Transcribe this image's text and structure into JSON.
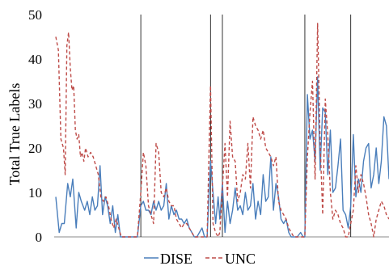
{
  "chart_data": {
    "type": "line",
    "title": "",
    "xlabel": "",
    "ylabel": "Total True Labels",
    "ylim": [
      0,
      50
    ],
    "y_ticks": [
      "0",
      "10",
      "20",
      "30",
      "40",
      "50"
    ],
    "grid": false,
    "legend_position": "bottom-center",
    "x": [
      0,
      1,
      2,
      3,
      4,
      5,
      6,
      7,
      8,
      9,
      10,
      11,
      12,
      13,
      14,
      15,
      16,
      17,
      18,
      19,
      20,
      21,
      22,
      23,
      24,
      25,
      26,
      27,
      28,
      29,
      30,
      31,
      32,
      33,
      34,
      35,
      36,
      37,
      38,
      39,
      40,
      41,
      42,
      43,
      44,
      45,
      46,
      47,
      48,
      49,
      50,
      51,
      52,
      53,
      54,
      55,
      56,
      57,
      58,
      59,
      60,
      61,
      62,
      63,
      64,
      65,
      66,
      67,
      68,
      69,
      70,
      71,
      72,
      73,
      74,
      75,
      76,
      77,
      78,
      79,
      80,
      81,
      82,
      83,
      84,
      85,
      86,
      87,
      88,
      89,
      90,
      91,
      92,
      93,
      94,
      95,
      96,
      97,
      98,
      99,
      100,
      101,
      102,
      103,
      104,
      105,
      106,
      107,
      108,
      109,
      110,
      111,
      112,
      113,
      114,
      115,
      116,
      117,
      118,
      119,
      120,
      121,
      122,
      123,
      124,
      125,
      126,
      127,
      128,
      129,
      130,
      131,
      132,
      133,
      134,
      135,
      136,
      137,
      138,
      139,
      140,
      141,
      142,
      143,
      144,
      145,
      146,
      147,
      148,
      149,
      150,
      151,
      152,
      153,
      154,
      155,
      156,
      157,
      158,
      159,
      160,
      161,
      162,
      163,
      164,
      165,
      166,
      167,
      168,
      169,
      170,
      171,
      172,
      173,
      174,
      175,
      176,
      177,
      178,
      179,
      180,
      181,
      182,
      183,
      184,
      185,
      186,
      187,
      188,
      189,
      190,
      191,
      192,
      193,
      194,
      195,
      196,
      197,
      198,
      199,
      200,
      201,
      202,
      203,
      204,
      205,
      206,
      207,
      208,
      209,
      210,
      211,
      212,
      213,
      214,
      215,
      216,
      217,
      218,
      219,
      220,
      221,
      222,
      223,
      224,
      225,
      226,
      227,
      228,
      229,
      230,
      231,
      232,
      233,
      234,
      235,
      236,
      237,
      238,
      239,
      240,
      241,
      242,
      243,
      244,
      245,
      246,
      247,
      248,
      249,
      250,
      251,
      252,
      253,
      254,
      255,
      256,
      257,
      258,
      259,
      260,
      261,
      262,
      263,
      264,
      265,
      266,
      267,
      268,
      269,
      270,
      271,
      272,
      273,
      274,
      275,
      276,
      277,
      278,
      279,
      280,
      281,
      282,
      283,
      284,
      285,
      286,
      287,
      288,
      289,
      290,
      291,
      292,
      293,
      294,
      295,
      296,
      297,
      298,
      299,
      300,
      301,
      302,
      303,
      304,
      305,
      306,
      307,
      308,
      309,
      310,
      311,
      312,
      313,
      314,
      315,
      316,
      317,
      318,
      319,
      320,
      321,
      322,
      323,
      324,
      325,
      326,
      327,
      328,
      329,
      330,
      331,
      332,
      333,
      334,
      335,
      336,
      337,
      338,
      339,
      340,
      341,
      342,
      343,
      344,
      345,
      346,
      347,
      348,
      349,
      350,
      351,
      352,
      353,
      354,
      355,
      356,
      357,
      358,
      359,
      360,
      361,
      362,
      363,
      364,
      365,
      366,
      367,
      368,
      369,
      370,
      371,
      372,
      373,
      374,
      375,
      376,
      377,
      378,
      379,
      380,
      381,
      382,
      383,
      384,
      385,
      386,
      387,
      388,
      389,
      390,
      391,
      392,
      393,
      394,
      395,
      396,
      397,
      398,
      399,
      400,
      401,
      402,
      403,
      404,
      405,
      406,
      407,
      408,
      409,
      410,
      411,
      412,
      413,
      414,
      415,
      416,
      417,
      418,
      419,
      420
    ],
    "vlines_x": [
      100,
      182,
      196,
      293,
      347
    ],
    "series": [
      {
        "name": "DISE",
        "color": "#4a7ebb",
        "dash": "solid",
        "points": [
          [
            0,
            9
          ],
          [
            4,
            1
          ],
          [
            7,
            3
          ],
          [
            10,
            3
          ],
          [
            14,
            12
          ],
          [
            17,
            9
          ],
          [
            20,
            13
          ],
          [
            24,
            2
          ],
          [
            27,
            10
          ],
          [
            30,
            8
          ],
          [
            34,
            6
          ],
          [
            37,
            8
          ],
          [
            40,
            5
          ],
          [
            43,
            9
          ],
          [
            46,
            6
          ],
          [
            49,
            7
          ],
          [
            52,
            16
          ],
          [
            55,
            5
          ],
          [
            58,
            9
          ],
          [
            61,
            7
          ],
          [
            64,
            3
          ],
          [
            67,
            7
          ],
          [
            70,
            1
          ],
          [
            73,
            5
          ],
          [
            76,
            0
          ],
          [
            80,
            0
          ],
          [
            84,
            0
          ],
          [
            88,
            0
          ],
          [
            92,
            0
          ],
          [
            96,
            0
          ],
          [
            100,
            7
          ],
          [
            103,
            8
          ],
          [
            106,
            6
          ],
          [
            109,
            6
          ],
          [
            112,
            5
          ],
          [
            115,
            8
          ],
          [
            118,
            6
          ],
          [
            121,
            8
          ],
          [
            124,
            6
          ],
          [
            127,
            7
          ],
          [
            130,
            12
          ],
          [
            133,
            4
          ],
          [
            136,
            7
          ],
          [
            139,
            5
          ],
          [
            142,
            6
          ],
          [
            145,
            4
          ],
          [
            148,
            4
          ],
          [
            151,
            3
          ],
          [
            154,
            4
          ],
          [
            157,
            2
          ],
          [
            160,
            1
          ],
          [
            163,
            0
          ],
          [
            166,
            0
          ],
          [
            169,
            1
          ],
          [
            172,
            2
          ],
          [
            175,
            0
          ],
          [
            178,
            0
          ],
          [
            182,
            17
          ],
          [
            185,
            10
          ],
          [
            188,
            3
          ],
          [
            191,
            9
          ],
          [
            193,
            4
          ],
          [
            196,
            12
          ],
          [
            199,
            1
          ],
          [
            202,
            8
          ],
          [
            205,
            3
          ],
          [
            208,
            6
          ],
          [
            211,
            11
          ],
          [
            214,
            6
          ],
          [
            217,
            7
          ],
          [
            220,
            5
          ],
          [
            223,
            10
          ],
          [
            226,
            6
          ],
          [
            229,
            7
          ],
          [
            232,
            12
          ],
          [
            235,
            4
          ],
          [
            238,
            8
          ],
          [
            241,
            5
          ],
          [
            244,
            14
          ],
          [
            247,
            8
          ],
          [
            250,
            9
          ],
          [
            253,
            18
          ],
          [
            256,
            6
          ],
          [
            259,
            12
          ],
          [
            262,
            9
          ],
          [
            265,
            4
          ],
          [
            268,
            3
          ],
          [
            271,
            4
          ],
          [
            274,
            1
          ],
          [
            277,
            0
          ],
          [
            280,
            0
          ],
          [
            284,
            0
          ],
          [
            288,
            1
          ],
          [
            291,
            0
          ],
          [
            293,
            0
          ],
          [
            296,
            32
          ],
          [
            299,
            22
          ],
          [
            302,
            24
          ],
          [
            305,
            17
          ],
          [
            308,
            36
          ],
          [
            311,
            15
          ],
          [
            314,
            29
          ],
          [
            317,
            28
          ],
          [
            320,
            14
          ],
          [
            323,
            24
          ],
          [
            326,
            10
          ],
          [
            329,
            11
          ],
          [
            332,
            16
          ],
          [
            335,
            22
          ],
          [
            338,
            6
          ],
          [
            341,
            5
          ],
          [
            344,
            2
          ],
          [
            347,
            7
          ],
          [
            350,
            23
          ],
          [
            353,
            9
          ],
          [
            356,
            13
          ],
          [
            359,
            10
          ],
          [
            362,
            17
          ],
          [
            365,
            20
          ],
          [
            368,
            21
          ],
          [
            371,
            11
          ],
          [
            374,
            14
          ],
          [
            377,
            20
          ],
          [
            380,
            12
          ],
          [
            383,
            17
          ],
          [
            386,
            27
          ],
          [
            389,
            25
          ],
          [
            392,
            13
          ]
        ]
      },
      {
        "name": "UNC",
        "color": "#be4b48",
        "dash": "dashed",
        "points": [
          [
            0,
            45
          ],
          [
            3,
            42
          ],
          [
            6,
            22
          ],
          [
            9,
            20
          ],
          [
            11,
            14
          ],
          [
            13,
            43
          ],
          [
            15,
            46
          ],
          [
            17,
            38
          ],
          [
            19,
            33
          ],
          [
            21,
            34
          ],
          [
            23,
            24
          ],
          [
            25,
            22
          ],
          [
            27,
            23
          ],
          [
            29,
            18
          ],
          [
            31,
            19
          ],
          [
            33,
            17
          ],
          [
            35,
            20
          ],
          [
            38,
            18
          ],
          [
            41,
            19
          ],
          [
            44,
            18
          ],
          [
            47,
            16
          ],
          [
            50,
            14
          ],
          [
            53,
            9
          ],
          [
            56,
            8
          ],
          [
            59,
            9
          ],
          [
            62,
            7
          ],
          [
            65,
            4
          ],
          [
            68,
            2
          ],
          [
            71,
            4
          ],
          [
            74,
            2
          ],
          [
            77,
            0
          ],
          [
            80,
            0
          ],
          [
            84,
            0
          ],
          [
            88,
            0
          ],
          [
            92,
            0
          ],
          [
            96,
            0
          ],
          [
            100,
            10
          ],
          [
            103,
            19
          ],
          [
            106,
            16
          ],
          [
            109,
            7
          ],
          [
            112,
            5
          ],
          [
            115,
            3
          ],
          [
            118,
            21
          ],
          [
            121,
            19
          ],
          [
            124,
            10
          ],
          [
            127,
            9
          ],
          [
            130,
            11
          ],
          [
            133,
            8
          ],
          [
            136,
            7
          ],
          [
            139,
            7
          ],
          [
            142,
            4
          ],
          [
            145,
            3
          ],
          [
            148,
            2
          ],
          [
            151,
            3
          ],
          [
            154,
            3
          ],
          [
            157,
            2
          ],
          [
            160,
            1
          ],
          [
            163,
            0
          ],
          [
            166,
            0
          ],
          [
            170,
            0
          ],
          [
            174,
            0
          ],
          [
            178,
            0
          ],
          [
            182,
            34
          ],
          [
            185,
            3
          ],
          [
            188,
            1
          ],
          [
            191,
            0
          ],
          [
            193,
            1
          ],
          [
            196,
            11
          ],
          [
            199,
            21
          ],
          [
            202,
            9
          ],
          [
            205,
            26
          ],
          [
            208,
            18
          ],
          [
            211,
            17
          ],
          [
            214,
            8
          ],
          [
            217,
            10
          ],
          [
            220,
            14
          ],
          [
            223,
            13
          ],
          [
            226,
            21
          ],
          [
            229,
            11
          ],
          [
            232,
            27
          ],
          [
            235,
            25
          ],
          [
            238,
            24
          ],
          [
            241,
            22
          ],
          [
            244,
            24
          ],
          [
            247,
            20
          ],
          [
            250,
            19
          ],
          [
            253,
            18
          ],
          [
            256,
            16
          ],
          [
            259,
            18
          ],
          [
            262,
            8
          ],
          [
            265,
            6
          ],
          [
            268,
            5
          ],
          [
            271,
            4
          ],
          [
            274,
            2
          ],
          [
            277,
            1
          ],
          [
            280,
            0
          ],
          [
            284,
            0
          ],
          [
            288,
            0
          ],
          [
            291,
            0
          ],
          [
            293,
            0
          ],
          [
            296,
            18
          ],
          [
            299,
            28
          ],
          [
            302,
            35
          ],
          [
            305,
            13
          ],
          [
            308,
            48
          ],
          [
            311,
            21
          ],
          [
            314,
            5
          ],
          [
            317,
            31
          ],
          [
            320,
            23
          ],
          [
            323,
            10
          ],
          [
            326,
            4
          ],
          [
            329,
            6
          ],
          [
            332,
            5
          ],
          [
            335,
            3
          ],
          [
            338,
            2
          ],
          [
            341,
            0
          ],
          [
            344,
            0
          ],
          [
            347,
            3
          ],
          [
            350,
            6
          ],
          [
            353,
            16
          ],
          [
            356,
            10
          ],
          [
            359,
            14
          ],
          [
            362,
            12
          ],
          [
            365,
            9
          ],
          [
            368,
            5
          ],
          [
            371,
            3
          ],
          [
            374,
            0
          ],
          [
            377,
            4
          ],
          [
            380,
            6
          ],
          [
            383,
            8
          ],
          [
            386,
            7
          ],
          [
            389,
            5
          ],
          [
            392,
            4
          ]
        ]
      }
    ]
  }
}
